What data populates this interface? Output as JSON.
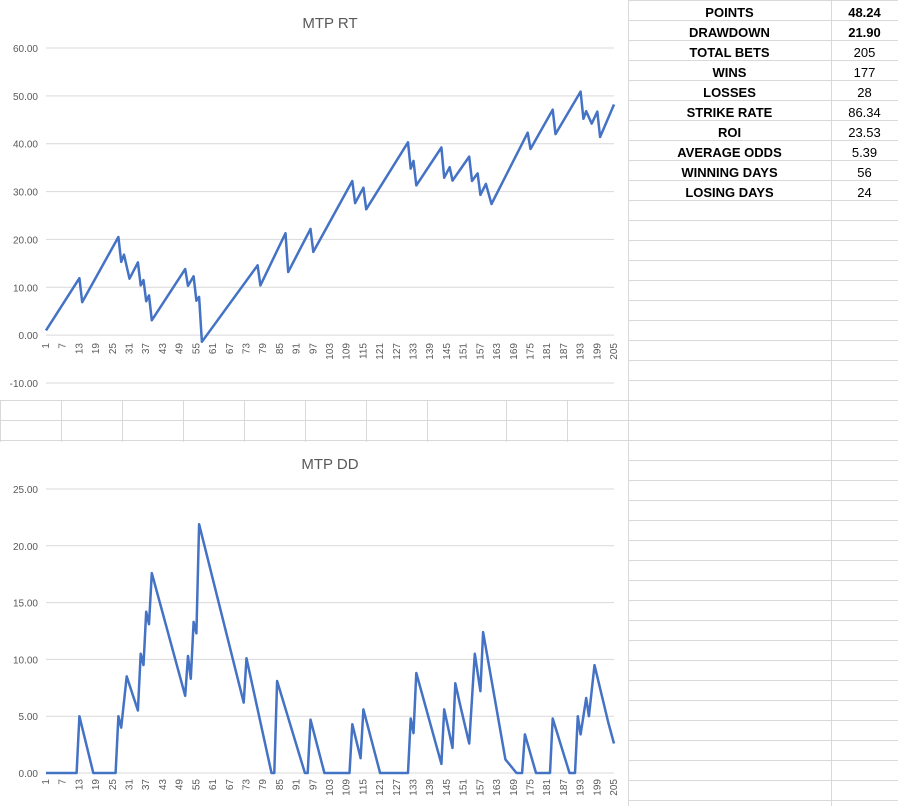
{
  "stats": [
    {
      "label": "POINTS",
      "value": "48.24",
      "bold": true
    },
    {
      "label": "DRAWDOWN",
      "value": "21.90",
      "bold": true
    },
    {
      "label": "TOTAL BETS",
      "value": "205",
      "bold": false
    },
    {
      "label": "WINS",
      "value": "177",
      "bold": false
    },
    {
      "label": "LOSSES",
      "value": "28",
      "bold": false
    },
    {
      "label": "STRIKE RATE",
      "value": "86.34",
      "bold": false
    },
    {
      "label": "ROI",
      "value": "23.53",
      "bold": false
    },
    {
      "label": "AVERAGE ODDS",
      "value": "5.39",
      "bold": false
    },
    {
      "label": "WINNING DAYS",
      "value": "56",
      "bold": false
    },
    {
      "label": "LOSING DAYS",
      "value": "24",
      "bold": false
    }
  ],
  "chart_data": [
    {
      "type": "line",
      "title": "MTP RT",
      "xlabel": "",
      "ylabel": "",
      "ylim": [
        -10,
        60
      ],
      "yticks": [
        "60.00",
        "50.00",
        "40.00",
        "30.00",
        "20.00",
        "10.00",
        "0.00",
        "-10.00"
      ],
      "x_tick_labels": [
        "1",
        "7",
        "13",
        "19",
        "25",
        "31",
        "37",
        "43",
        "49",
        "55",
        "61",
        "67",
        "73",
        "79",
        "85",
        "91",
        "97",
        "103",
        "109",
        "115",
        "121",
        "127",
        "133",
        "139",
        "145",
        "151",
        "157",
        "163",
        "169",
        "175",
        "181",
        "187",
        "193",
        "199",
        "205"
      ],
      "grid": true,
      "color": "#4472C4",
      "points": [
        [
          1,
          1
        ],
        [
          13,
          11.9
        ],
        [
          14,
          6.9
        ],
        [
          27,
          20.5
        ],
        [
          28,
          15.3
        ],
        [
          29,
          16.8
        ],
        [
          31,
          11.8
        ],
        [
          34,
          15.2
        ],
        [
          35,
          10.4
        ],
        [
          36,
          11.5
        ],
        [
          37,
          7.1
        ],
        [
          38,
          8.3
        ],
        [
          39,
          3.1
        ],
        [
          51,
          13.8
        ],
        [
          52,
          10.3
        ],
        [
          54,
          12.3
        ],
        [
          55,
          7.2
        ],
        [
          56,
          8
        ],
        [
          57,
          -1.4
        ],
        [
          77,
          14.6
        ],
        [
          78,
          10.4
        ],
        [
          87,
          21.3
        ],
        [
          88,
          13.2
        ],
        [
          96,
          22.2
        ],
        [
          97,
          17.4
        ],
        [
          111,
          32.2
        ],
        [
          112,
          27.6
        ],
        [
          115,
          30.8
        ],
        [
          116,
          26.3
        ],
        [
          131,
          40.3
        ],
        [
          132,
          34.8
        ],
        [
          133,
          36.4
        ],
        [
          134,
          31.3
        ],
        [
          143,
          39.2
        ],
        [
          144,
          32.9
        ],
        [
          146,
          35.1
        ],
        [
          147,
          32.3
        ],
        [
          153,
          37.3
        ],
        [
          154,
          32.2
        ],
        [
          156,
          33.8
        ],
        [
          157,
          29.3
        ],
        [
          159,
          31.6
        ],
        [
          161,
          27.4
        ],
        [
          174,
          42.3
        ],
        [
          175,
          38.9
        ],
        [
          183,
          47.1
        ],
        [
          184,
          42
        ],
        [
          193,
          50.9
        ],
        [
          194,
          45.2
        ],
        [
          195,
          46.8
        ],
        [
          197,
          44.2
        ],
        [
          199,
          46.7
        ],
        [
          200,
          41.4
        ],
        [
          205,
          48.2
        ]
      ]
    },
    {
      "type": "line",
      "title": "MTP DD",
      "xlabel": "",
      "ylabel": "",
      "ylim": [
        0,
        25
      ],
      "yticks": [
        "25.00",
        "20.00",
        "15.00",
        "10.00",
        "5.00",
        "0.00"
      ],
      "x_tick_labels": [
        "1",
        "7",
        "13",
        "19",
        "25",
        "31",
        "37",
        "43",
        "49",
        "55",
        "61",
        "67",
        "73",
        "79",
        "85",
        "91",
        "97",
        "103",
        "109",
        "115",
        "121",
        "127",
        "133",
        "139",
        "145",
        "151",
        "157",
        "163",
        "169",
        "175",
        "181",
        "187",
        "193",
        "199",
        "205"
      ],
      "grid": true,
      "color": "#4472C4",
      "points": [
        [
          1,
          0
        ],
        [
          12,
          0
        ],
        [
          13,
          5
        ],
        [
          18,
          0
        ],
        [
          26,
          0
        ],
        [
          27,
          5
        ],
        [
          28,
          4
        ],
        [
          30,
          8.5
        ],
        [
          34,
          5.5
        ],
        [
          35,
          10.5
        ],
        [
          36,
          9.5
        ],
        [
          37,
          14.2
        ],
        [
          38,
          13.1
        ],
        [
          39,
          17.6
        ],
        [
          51,
          6.8
        ],
        [
          52,
          10.3
        ],
        [
          53,
          8.3
        ],
        [
          54,
          13.3
        ],
        [
          55,
          12.3
        ],
        [
          56,
          21.9
        ],
        [
          72,
          6.2
        ],
        [
          73,
          10.1
        ],
        [
          82,
          0
        ],
        [
          83,
          0
        ],
        [
          84,
          8.1
        ],
        [
          94,
          0
        ],
        [
          95,
          0
        ],
        [
          96,
          4.7
        ],
        [
          101,
          0
        ],
        [
          110,
          0
        ],
        [
          111,
          4.3
        ],
        [
          114,
          1.3
        ],
        [
          115,
          5.6
        ],
        [
          121,
          0
        ],
        [
          131,
          0
        ],
        [
          132,
          4.8
        ],
        [
          133,
          3.5
        ],
        [
          134,
          8.8
        ],
        [
          143,
          0.8
        ],
        [
          144,
          5.6
        ],
        [
          147,
          2.2
        ],
        [
          148,
          7.9
        ],
        [
          150,
          5.7
        ],
        [
          153,
          2.6
        ],
        [
          155,
          10.5
        ],
        [
          157,
          7.2
        ],
        [
          158,
          12.4
        ],
        [
          166,
          1.2
        ],
        [
          170,
          0
        ],
        [
          172,
          0
        ],
        [
          173,
          3.4
        ],
        [
          177,
          0
        ],
        [
          182,
          0
        ],
        [
          183,
          4.8
        ],
        [
          189,
          0
        ],
        [
          190,
          0
        ],
        [
          191,
          0
        ],
        [
          192,
          5
        ],
        [
          193,
          3.4
        ],
        [
          195,
          6.6
        ],
        [
          196,
          5
        ],
        [
          198,
          9.5
        ],
        [
          203,
          4.4
        ],
        [
          205,
          2.6
        ]
      ]
    }
  ]
}
